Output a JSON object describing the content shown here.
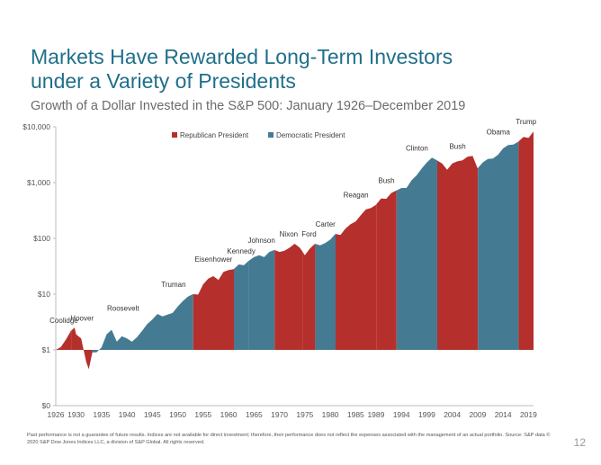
{
  "title_line1": "Markets Have Rewarded Long-Term Investors",
  "title_line2": "under a Variety of Presidents",
  "subtitle": "Growth of a Dollar Invested in the S&P 500: January 1926–December 2019",
  "footnote": "Past performance is not a guarantee of future results. Indices are not available for direct investment; therefore, their performance does not reflect the expenses associated with the management of an actual portfolio. Source: S&P data © 2020 S&P Dow Jones Indices LLC, a division of S&P Global. All rights reserved.",
  "page_number": "12",
  "colors": {
    "republican": "#b5302c",
    "democratic": "#457b92",
    "title": "#1f6f8b"
  },
  "chart_data": {
    "type": "area",
    "title": "",
    "xlabel": "",
    "ylabel": "",
    "y_scale": "log",
    "ylim": [
      0.1,
      10000
    ],
    "xlim": [
      1926,
      2019.99
    ],
    "y_ticks": [
      {
        "value": 0.1,
        "label": "$0"
      },
      {
        "value": 1,
        "label": "$1"
      },
      {
        "value": 10,
        "label": "$10"
      },
      {
        "value": 100,
        "label": "$100"
      },
      {
        "value": 1000,
        "label": "$1,000"
      },
      {
        "value": 10000,
        "label": "$10,000"
      }
    ],
    "x_ticks": [
      "1926",
      "1930",
      "1935",
      "1940",
      "1945",
      "1950",
      "1955",
      "1960",
      "1965",
      "1970",
      "1975",
      "1980",
      "1985",
      "1989",
      "1994",
      "1999",
      "2004",
      "2009",
      "2014",
      "2019"
    ],
    "legend": {
      "position": "top",
      "items": [
        {
          "label": "Republican President",
          "party": "republican"
        },
        {
          "label": "Democratic President",
          "party": "democratic"
        }
      ]
    },
    "growth_points": [
      [
        1926.0,
        1.0
      ],
      [
        1927.0,
        1.12
      ],
      [
        1928.0,
        1.53
      ],
      [
        1929.0,
        2.2
      ],
      [
        1929.7,
        2.5
      ],
      [
        1930.0,
        1.9
      ],
      [
        1931.0,
        1.6
      ],
      [
        1932.0,
        0.6
      ],
      [
        1932.5,
        0.45
      ],
      [
        1933.2,
        0.9
      ],
      [
        1934.0,
        0.9
      ],
      [
        1935.0,
        1.1
      ],
      [
        1936.0,
        1.9
      ],
      [
        1937.0,
        2.3
      ],
      [
        1938.0,
        1.4
      ],
      [
        1939.0,
        1.75
      ],
      [
        1940.0,
        1.6
      ],
      [
        1941.0,
        1.4
      ],
      [
        1942.0,
        1.7
      ],
      [
        1943.0,
        2.2
      ],
      [
        1944.0,
        2.9
      ],
      [
        1945.0,
        3.5
      ],
      [
        1946.0,
        4.4
      ],
      [
        1947.0,
        4.0
      ],
      [
        1948.0,
        4.3
      ],
      [
        1949.0,
        4.6
      ],
      [
        1950.0,
        6.0
      ],
      [
        1951.0,
        7.5
      ],
      [
        1952.0,
        9.0
      ],
      [
        1953.0,
        10.0
      ],
      [
        1954.0,
        9.8
      ],
      [
        1955.0,
        15.0
      ],
      [
        1956.0,
        19.0
      ],
      [
        1957.0,
        21.0
      ],
      [
        1958.0,
        18.0
      ],
      [
        1959.0,
        25.0
      ],
      [
        1960.0,
        27.0
      ],
      [
        1961.0,
        28.0
      ],
      [
        1962.0,
        34.0
      ],
      [
        1963.0,
        33.0
      ],
      [
        1964.0,
        40.0
      ],
      [
        1965.0,
        46.0
      ],
      [
        1966.0,
        50.0
      ],
      [
        1967.0,
        46.0
      ],
      [
        1968.0,
        57.0
      ],
      [
        1969.0,
        62.0
      ],
      [
        1970.0,
        57.0
      ],
      [
        1971.0,
        60.0
      ],
      [
        1972.0,
        68.0
      ],
      [
        1973.0,
        80.0
      ],
      [
        1974.0,
        68.0
      ],
      [
        1975.0,
        50.0
      ],
      [
        1976.0,
        66.0
      ],
      [
        1977.0,
        80.0
      ],
      [
        1978.0,
        75.0
      ],
      [
        1979.0,
        82.0
      ],
      [
        1980.0,
        95.0
      ],
      [
        1981.0,
        120.0
      ],
      [
        1982.0,
        115.0
      ],
      [
        1983.0,
        150.0
      ],
      [
        1984.0,
        180.0
      ],
      [
        1985.0,
        200.0
      ],
      [
        1986.0,
        260.0
      ],
      [
        1987.0,
        330.0
      ],
      [
        1988.0,
        350.0
      ],
      [
        1989.0,
        400.0
      ],
      [
        1990.0,
        520.0
      ],
      [
        1991.0,
        510.0
      ],
      [
        1992.0,
        650.0
      ],
      [
        1993.0,
        720.0
      ],
      [
        1994.0,
        800.0
      ],
      [
        1995.0,
        800.0
      ],
      [
        1996.0,
        1100.0
      ],
      [
        1997.0,
        1350.0
      ],
      [
        1998.0,
        1800.0
      ],
      [
        1999.0,
        2300.0
      ],
      [
        2000.0,
        2800.0
      ],
      [
        2001.0,
        2500.0
      ],
      [
        2002.0,
        2200.0
      ],
      [
        2003.0,
        1700.0
      ],
      [
        2004.0,
        2200.0
      ],
      [
        2005.0,
        2400.0
      ],
      [
        2006.0,
        2500.0
      ],
      [
        2007.0,
        2900.0
      ],
      [
        2008.0,
        3000.0
      ],
      [
        2009.0,
        1800.0
      ],
      [
        2010.0,
        2300.0
      ],
      [
        2011.0,
        2650.0
      ],
      [
        2012.0,
        2700.0
      ],
      [
        2013.0,
        3150.0
      ],
      [
        2014.0,
        4100.0
      ],
      [
        2015.0,
        4700.0
      ],
      [
        2016.0,
        4800.0
      ],
      [
        2017.0,
        5400.0
      ],
      [
        2018.0,
        6600.0
      ],
      [
        2019.0,
        6300.0
      ],
      [
        2019.99,
        8250.0
      ]
    ],
    "terms": [
      {
        "president": "Coolidge",
        "party": "republican",
        "start": 1926.0,
        "end": 1929.17
      },
      {
        "president": "Hoover",
        "party": "republican",
        "start": 1929.17,
        "end": 1933.17
      },
      {
        "president": "Roosevelt",
        "party": "democratic",
        "start": 1933.17,
        "end": 1945.3
      },
      {
        "president": "Truman",
        "party": "democratic",
        "start": 1945.3,
        "end": 1953.05
      },
      {
        "president": "Eisenhower",
        "party": "republican",
        "start": 1953.05,
        "end": 1961.05
      },
      {
        "president": "Kennedy",
        "party": "democratic",
        "start": 1961.05,
        "end": 1963.9
      },
      {
        "president": "Johnson",
        "party": "democratic",
        "start": 1963.9,
        "end": 1969.05
      },
      {
        "president": "Nixon",
        "party": "republican",
        "start": 1969.05,
        "end": 1974.6
      },
      {
        "president": "Ford",
        "party": "republican",
        "start": 1974.6,
        "end": 1977.05
      },
      {
        "president": "Carter",
        "party": "democratic",
        "start": 1977.05,
        "end": 1981.05
      },
      {
        "president": "Reagan",
        "party": "republican",
        "start": 1981.05,
        "end": 1989.05
      },
      {
        "president": "Bush",
        "party": "republican",
        "start": 1989.05,
        "end": 1993.05
      },
      {
        "president": "Clinton",
        "party": "democratic",
        "start": 1993.05,
        "end": 2001.05
      },
      {
        "president": "Bush",
        "party": "republican",
        "start": 2001.05,
        "end": 2009.05
      },
      {
        "president": "Obama",
        "party": "democratic",
        "start": 2009.05,
        "end": 2017.05
      },
      {
        "president": "Trump",
        "party": "republican",
        "start": 2017.05,
        "end": 2019.99
      }
    ]
  }
}
